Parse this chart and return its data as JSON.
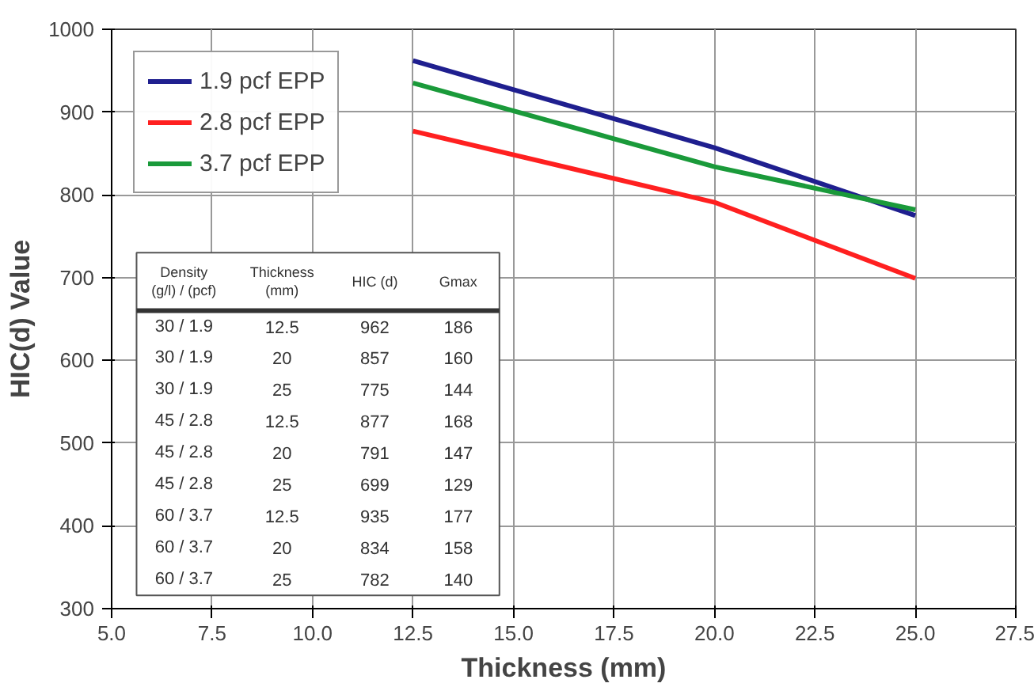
{
  "chart_data": {
    "type": "line",
    "xlabel": "Thickness (mm)",
    "ylabel": "HIC(d) Value",
    "x": [
      12.5,
      20,
      25
    ],
    "series": [
      {
        "name": "1.9 pcf EPP",
        "color": "#1f1f8f",
        "values": [
          962,
          857,
          775
        ]
      },
      {
        "name": "2.8 pcf EPP",
        "color": "#ff2020",
        "values": [
          877,
          791,
          699
        ]
      },
      {
        "name": "3.7 pcf EPP",
        "color": "#1a9a3a",
        "values": [
          935,
          834,
          782
        ]
      }
    ],
    "xlim": [
      5,
      27.5
    ],
    "xticks": [
      {
        "value": 5,
        "label": "5.0"
      },
      {
        "value": 7.5,
        "label": "7.5"
      },
      {
        "value": 10,
        "label": "10.0"
      },
      {
        "value": 12.5,
        "label": "12.5"
      },
      {
        "value": 15,
        "label": "15.0"
      },
      {
        "value": 17.5,
        "label": "17.5"
      },
      {
        "value": 20,
        "label": "20.0"
      },
      {
        "value": 22.5,
        "label": "22.5"
      },
      {
        "value": 25,
        "label": "25.0"
      },
      {
        "value": 27.5,
        "label": "27.5"
      }
    ],
    "ylim": [
      300,
      1000
    ],
    "yticks": [
      300,
      400,
      500,
      600,
      700,
      800,
      900,
      1000
    ],
    "grid": true,
    "legend": "top left",
    "marker": "none",
    "line_style": "solid",
    "annotations": [
      "Density\n(g/l) / (pcf)",
      "Thickness\n(mm)",
      "HIC (d)",
      "Gmax",
      "30 / 1.9",
      "12.5",
      "962",
      "186",
      "30 / 1.9",
      "20",
      "857",
      "160",
      "30 / 1.9",
      "25",
      "775",
      "144",
      "45 / 2.8",
      "12.5",
      "877",
      "168",
      "45 / 2.8",
      "20",
      "791",
      "147",
      "45 / 2.8",
      "25",
      "699",
      "129",
      "60 / 3.7",
      "12.5",
      "935",
      "177",
      "60 / 3.7",
      "20",
      "834",
      "158",
      "60 / 3.7",
      "25",
      "782",
      "140"
    ]
  }
}
